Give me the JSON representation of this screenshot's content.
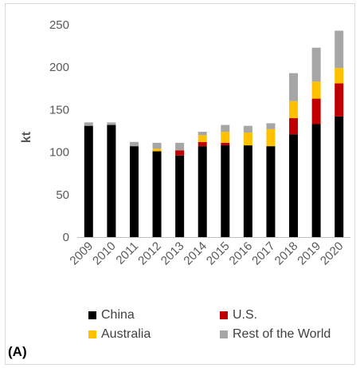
{
  "chart_data": {
    "type": "bar",
    "stacked": true,
    "categories": [
      "2009",
      "2010",
      "2011",
      "2012",
      "2013",
      "2014",
      "2015",
      "2016",
      "2017",
      "2018",
      "2019",
      "2020"
    ],
    "series": [
      {
        "name": "China",
        "color": "#000000",
        "values": [
          131,
          132,
          107,
          101,
          96,
          107,
          108,
          108,
          107,
          121,
          133,
          142
        ]
      },
      {
        "name": "U.S.",
        "color": "#c00000",
        "values": [
          0,
          0,
          0,
          0,
          6,
          5,
          3,
          0,
          0,
          19,
          30,
          39
        ]
      },
      {
        "name": "Australia",
        "color": "#ffc000",
        "values": [
          0,
          0,
          0,
          3,
          0,
          8,
          13,
          15,
          20,
          20,
          20,
          18
        ]
      },
      {
        "name": "Rest of the World",
        "color": "#a6a6a6",
        "values": [
          4,
          3,
          5,
          7,
          9,
          4,
          8,
          8,
          7,
          33,
          40,
          44
        ]
      }
    ],
    "xlabel": "",
    "ylabel": "kt",
    "ylim": [
      0,
      250
    ],
    "yticks": [
      "0",
      "50",
      "100",
      "150",
      "200",
      "250"
    ],
    "legend_position": "bottom",
    "grid": false
  },
  "panel_label": "(A)"
}
